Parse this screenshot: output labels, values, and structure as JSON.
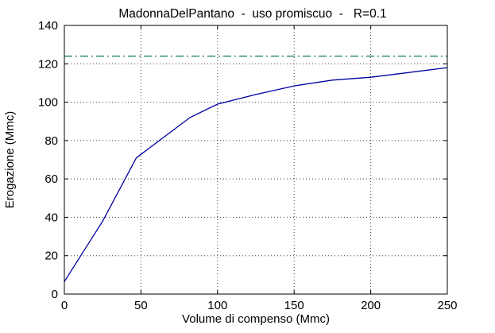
{
  "figure": {
    "background_color": "#ffffff",
    "axis_color": "#000000",
    "grid_color": "#3a3a3a",
    "text_color": "#000000"
  },
  "chart_data": {
    "type": "line",
    "title": "MadonnaDelPantano  -  uso promiscuo  -   R=0.1",
    "xlabel": "Volume di compenso (Mmc)",
    "ylabel": "Erogazione (Mmc)",
    "xlim": [
      0,
      250
    ],
    "ylim": [
      0,
      140
    ],
    "xticks": [
      0,
      50,
      100,
      150,
      200,
      250
    ],
    "yticks": [
      0,
      20,
      40,
      60,
      80,
      100,
      120,
      140
    ],
    "grid": true,
    "grid_style": "dotted",
    "legend": "none",
    "series": [
      {
        "name": "erogazione-curve",
        "type": "line",
        "style": "solid",
        "color": "#0000A0",
        "width": 1.3,
        "points": [
          [
            0,
            6.5
          ],
          [
            25,
            38
          ],
          [
            47,
            71
          ],
          [
            62,
            80
          ],
          [
            82,
            92
          ],
          [
            100,
            99
          ],
          [
            125,
            104
          ],
          [
            150,
            108.5
          ],
          [
            175,
            111.5
          ],
          [
            200,
            113
          ],
          [
            225,
            115.5
          ],
          [
            250,
            118
          ]
        ]
      },
      {
        "name": "max-erogazione-line",
        "type": "line",
        "style": "dashdot",
        "color": "#117A4C",
        "width": 1.3,
        "points": [
          [
            0,
            124
          ],
          [
            250,
            124
          ]
        ]
      }
    ]
  }
}
